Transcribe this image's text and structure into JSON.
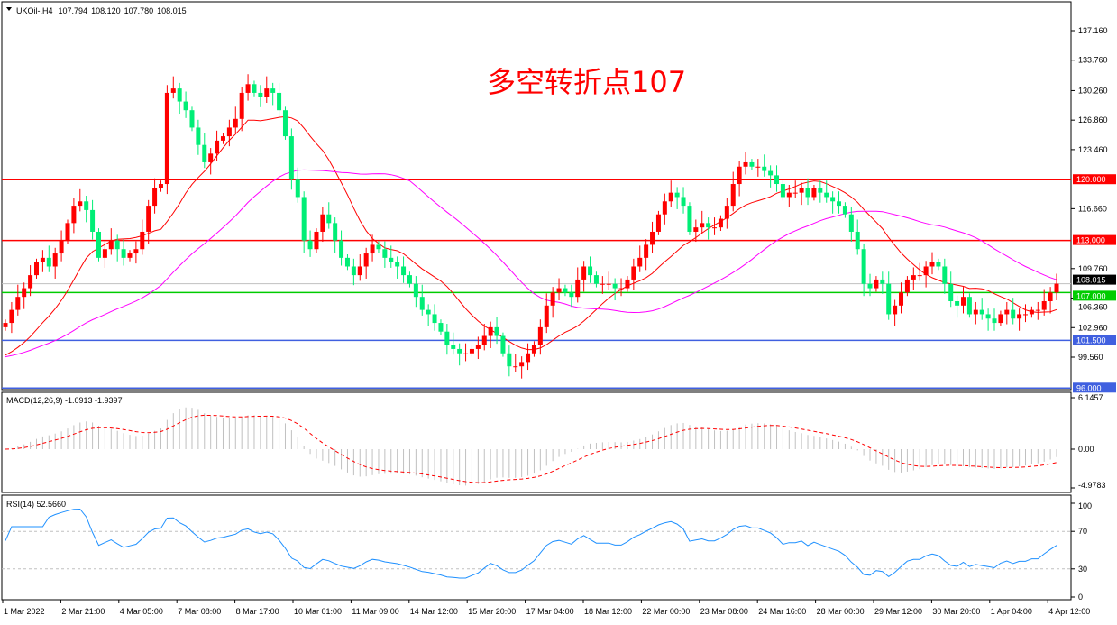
{
  "header": {
    "symbol": "UKOil-,H4",
    "open": "107.794",
    "high": "108.120",
    "low": "107.780",
    "close": "108.015"
  },
  "annotation": {
    "text": "多空转折点107",
    "color": "#ff0000"
  },
  "colors": {
    "bull": "#ff0000",
    "bear": "#00ee76",
    "ma_fast": "#ff0000",
    "ma_slow": "#ff00ff",
    "macd_hist": "#c0c0c0",
    "macd_signal": "#ff0000",
    "rsi": "#1e90ff"
  },
  "price_axis": {
    "ticks": [
      "137.160",
      "133.760",
      "130.260",
      "126.860",
      "123.460",
      "116.660",
      "109.760",
      "106.360",
      "102.960",
      "99.560"
    ],
    "max": 137.16,
    "min": 99.56
  },
  "levels": [
    {
      "label": "120.000",
      "value": 120.0,
      "color": "#ff0000"
    },
    {
      "label": "113.000",
      "value": 113.0,
      "color": "#ff0000"
    },
    {
      "label": "107.000",
      "value": 107.0,
      "color": "#00cc00"
    },
    {
      "label": "101.500",
      "value": 101.5,
      "color": "#4060e0"
    },
    {
      "label": "96.000",
      "value": 96.0,
      "color": "#4060e0"
    }
  ],
  "current_price": {
    "label": "108.015",
    "value": 108.015
  },
  "macd": {
    "title": "MACD(12,26,9) -1.0913 -1.9397",
    "ticks": [
      "6.1457",
      "0.00",
      "-4.9783"
    ]
  },
  "rsi": {
    "title": "RSI(14) 52.5660",
    "ticks": [
      "100",
      "70",
      "30",
      "0"
    ]
  },
  "time_axis": [
    "1 Mar 2022",
    "2 Mar 21:00",
    "4 Mar 05:00",
    "7 Mar 08:00",
    "8 Mar 17:00",
    "10 Mar 01:00",
    "11 Mar 09:00",
    "14 Mar 12:00",
    "15 Mar 20:00",
    "17 Mar 04:00",
    "18 Mar 12:00",
    "22 Mar 00:00",
    "23 Mar 08:00",
    "24 Mar 16:00",
    "28 Mar 00:00",
    "29 Mar 12:00",
    "30 Mar 20:00",
    "1 Apr 04:00",
    "4 Apr 12:00"
  ],
  "chart_data": {
    "type": "candlestick",
    "closes": [
      103.5,
      105,
      106.5,
      107.5,
      109,
      110.5,
      111,
      110,
      111.5,
      113,
      115,
      117,
      117.5,
      116.5,
      114,
      111,
      112,
      113,
      112,
      111,
      111.5,
      112,
      114,
      117,
      119,
      119.5,
      130,
      130.5,
      129,
      128,
      126,
      124,
      122,
      123,
      124.5,
      125,
      126,
      127,
      130,
      131,
      130,
      129.5,
      130.5,
      130,
      128,
      125,
      120,
      118,
      113,
      112,
      114,
      116,
      115,
      113,
      111,
      110,
      109,
      110,
      111.5,
      112.5,
      112,
      111,
      110.5,
      110,
      109,
      108,
      106.5,
      105,
      104.5,
      103.5,
      102.5,
      101,
      100.5,
      100,
      100,
      100.5,
      101,
      102,
      103,
      102,
      100,
      98.5,
      98.5,
      99,
      100,
      101,
      103,
      105.5,
      107,
      107.5,
      107,
      106.5,
      108.5,
      110,
      109,
      108,
      108,
      108,
      107.5,
      107.5,
      108.5,
      110,
      111,
      112.5,
      114,
      116,
      117.5,
      118.5,
      118,
      117,
      114,
      114.5,
      115,
      114.5,
      114.5,
      115.5,
      117,
      119.5,
      121.5,
      122,
      121.5,
      121.5,
      121,
      120.5,
      119.5,
      118,
      118.5,
      118.5,
      119,
      118,
      119,
      118.5,
      118,
      117.5,
      117,
      116,
      114,
      112,
      108,
      107.5,
      108.5,
      108,
      104.5,
      105.5,
      107,
      108.5,
      109,
      109,
      110,
      110.5,
      110,
      108,
      106,
      105.5,
      106.5,
      104.5,
      105,
      104.5,
      104,
      103.5,
      104.5,
      105,
      104,
      104.5,
      104.5,
      105,
      105,
      106,
      107,
      108.015
    ]
  }
}
